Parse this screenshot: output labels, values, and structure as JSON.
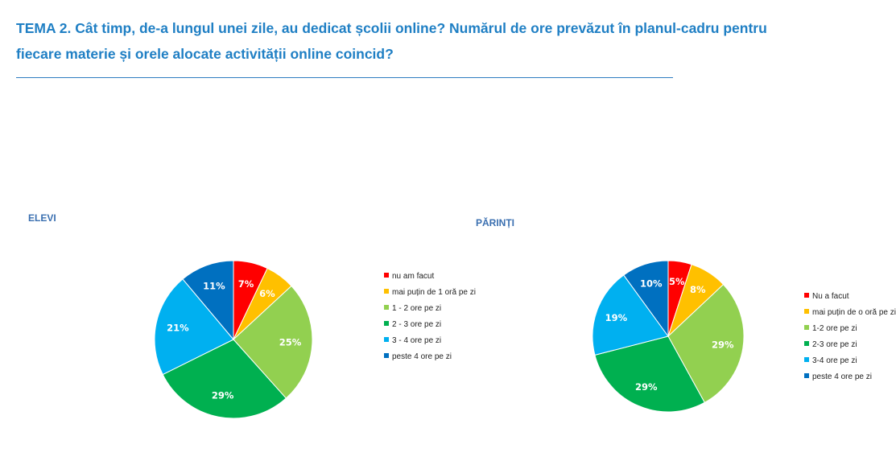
{
  "page": {
    "title_line1": "TEMA 2. Cât timp, de-a lungul unei zile, au dedicat școlii online? Numărul de ore prevăzut în planul-cadru pentru",
    "title_line2": "fiecare materie și orele alocate activității online coincid?"
  },
  "chart_data": [
    {
      "type": "pie",
      "title": "ELEVI",
      "categories": [
        "nu am facut",
        "mai puțin de 1 oră pe zi",
        "1 - 2 ore pe zi",
        "2 - 3 ore pe zi",
        "3 - 4 ore pe zi",
        "peste 4 ore pe zi"
      ],
      "values": [
        7,
        6,
        25,
        29,
        21,
        11
      ],
      "labels": [
        "7%",
        "6%",
        "25%",
        "29%",
        "21%",
        "11%"
      ],
      "colors": [
        "#ff0000",
        "#ffc000",
        "#92d050",
        "#00b050",
        "#00b0f0",
        "#0070c0"
      ],
      "legend": "right"
    },
    {
      "type": "pie",
      "title": "PĂRINȚI",
      "categories": [
        "Nu a facut",
        "mai puțin de o oră pe zi",
        "1-2 ore pe zi",
        "2-3 ore pe zi",
        "3-4 ore pe zi",
        "peste 4 ore pe zi"
      ],
      "values": [
        5,
        8,
        29,
        29,
        19,
        10
      ],
      "labels": [
        "5%",
        "8%",
        "29%",
        "29%",
        "19%",
        "10%"
      ],
      "colors": [
        "#ff0000",
        "#ffc000",
        "#92d050",
        "#00b050",
        "#00b0f0",
        "#0070c0"
      ],
      "legend": "right"
    }
  ]
}
